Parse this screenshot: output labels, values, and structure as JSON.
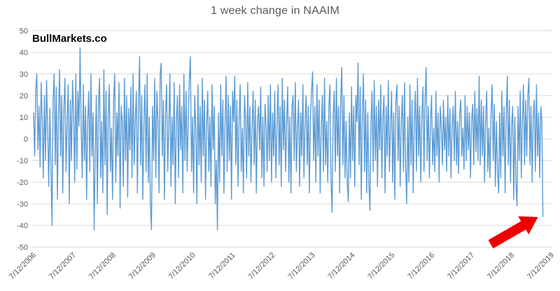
{
  "title": "1 week change in NAAIM",
  "watermark": "BullMarkets.co",
  "colors": {
    "background": "#FFFFFF",
    "series": "#5B9BD5",
    "grid": "#D9D9D9",
    "tick_label": "#595959",
    "title": "#595959",
    "watermark": "#000000",
    "arrow": "#EE0000"
  },
  "chart_data": {
    "type": "line",
    "title": "1 week change in NAAIM",
    "xlabel": "",
    "ylabel": "",
    "ylim": [
      -50,
      50
    ],
    "y_ticks": [
      50,
      40,
      30,
      20,
      10,
      0,
      -10,
      -20,
      -30,
      -40,
      -50
    ],
    "x_tick_labels": [
      "7/12/2006",
      "7/12/2007",
      "7/12/2008",
      "7/12/2009",
      "7/12/2010",
      "7/12/2011",
      "7/12/2012",
      "7/12/2013",
      "7/12/2014",
      "7/12/2015",
      "7/12/2016",
      "7/12/2017",
      "7/12/2018",
      "7/12/2019"
    ],
    "grid": "horizontal",
    "legend": "none",
    "x_total_slots": 479,
    "values": [
      12,
      -8,
      23,
      30,
      -5,
      15,
      -13,
      26,
      8,
      -18,
      20,
      -10,
      27,
      5,
      -22,
      14,
      -12,
      -40,
      18,
      30,
      -12,
      24,
      -28,
      10,
      32,
      -8,
      20,
      -25,
      15,
      28,
      -15,
      8,
      25,
      -30,
      18,
      -10,
      27,
      12,
      -20,
      30,
      -14,
      22,
      6,
      42,
      5,
      -18,
      25,
      -10,
      15,
      -28,
      8,
      22,
      -15,
      30,
      -8,
      12,
      -42,
      -5,
      20,
      -30,
      15,
      28,
      -18,
      8,
      -25,
      32,
      -12,
      22,
      -35,
      10,
      25,
      -15,
      5,
      -28,
      18,
      30,
      -20,
      12,
      -8,
      26,
      -32,
      15,
      8,
      -22,
      28,
      -10,
      20,
      -27,
      14,
      -5,
      24,
      -18,
      30,
      -12,
      8,
      22,
      -25,
      16,
      38,
      -12,
      20,
      -28,
      8,
      25,
      -15,
      30,
      -20,
      10,
      -30,
      -42,
      15,
      -10,
      28,
      -18,
      22,
      8,
      -25,
      30,
      35,
      -8,
      18,
      -28,
      12,
      25,
      -15,
      5,
      30,
      -22,
      10,
      -12,
      26,
      -30,
      8,
      20,
      -18,
      25,
      -5,
      15,
      -25,
      30,
      -10,
      22,
      -15,
      8,
      28,
      38,
      -15,
      10,
      -25,
      20,
      5,
      -30,
      25,
      -12,
      15,
      -20,
      28,
      -8,
      18,
      -28,
      6,
      22,
      -15,
      10,
      -22,
      25,
      -5,
      15,
      -30,
      -10,
      -42,
      12,
      -20,
      25,
      -8,
      18,
      -25,
      5,
      29,
      -15,
      20,
      -10,
      15,
      -28,
      22,
      8,
      29,
      -12,
      18,
      -22,
      8,
      25,
      -15,
      5,
      -25,
      20,
      10,
      -18,
      26,
      -8,
      15,
      -20,
      5,
      22,
      -12,
      18,
      -25,
      8,
      15,
      -5,
      24,
      -18,
      10,
      -22,
      16,
      6,
      -15,
      20,
      -10,
      25,
      -20,
      12,
      -8,
      22,
      -18,
      6,
      25,
      -12,
      15,
      -22,
      28,
      -5,
      18,
      -15,
      8,
      24,
      -20,
      10,
      -25,
      15,
      20,
      -10,
      26,
      -15,
      5,
      18,
      -22,
      12,
      -8,
      25,
      -18,
      8,
      20,
      -12,
      15,
      -25,
      10,
      22,
      31,
      -10,
      15,
      -20,
      25,
      -8,
      18,
      -25,
      5,
      20,
      -15,
      28,
      -12,
      8,
      -20,
      15,
      25,
      -18,
      -34,
      10,
      22,
      -15,
      28,
      -8,
      15,
      -25,
      18,
      33,
      -12,
      20,
      -18,
      8,
      -20,
      -29,
      12,
      -18,
      24,
      -10,
      15,
      -22,
      20,
      8,
      35,
      -12,
      24,
      -28,
      10,
      30,
      -15,
      18,
      -25,
      12,
      -20,
      -33,
      8,
      22,
      -15,
      27,
      -10,
      15,
      -22,
      18,
      -5,
      25,
      -18,
      10,
      20,
      -25,
      15,
      -8,
      27,
      -15,
      5,
      22,
      -20,
      12,
      -28,
      18,
      25,
      -10,
      15,
      -22,
      8,
      20,
      -15,
      26,
      -12,
      -30,
      10,
      -20,
      25,
      -12,
      18,
      -25,
      8,
      22,
      -15,
      28,
      -8,
      15,
      -20,
      10,
      24,
      -15,
      18,
      33,
      -10,
      15,
      -18,
      8,
      20,
      -12,
      5,
      -15,
      22,
      -8,
      12,
      -20,
      15,
      6,
      -12,
      18,
      -5,
      10,
      -15,
      20,
      -8,
      14,
      -18,
      6,
      15,
      -10,
      22,
      -12,
      8,
      -16,
      12,
      18,
      -8,
      5,
      -14,
      20,
      -10,
      15,
      -5,
      12,
      -18,
      8,
      16,
      -12,
      22,
      -6,
      14,
      -10,
      29,
      -12,
      18,
      -8,
      15,
      -20,
      10,
      22,
      -15,
      5,
      -18,
      12,
      25,
      -10,
      16,
      -22,
      8,
      -15,
      -25,
      12,
      -18,
      22,
      -8,
      15,
      -25,
      10,
      29,
      -12,
      18,
      -20,
      6,
      15,
      -28,
      10,
      -20,
      -31,
      15,
      -10,
      22,
      -18,
      8,
      25,
      -12,
      18,
      -8,
      20,
      28,
      -12,
      15,
      -20,
      10,
      18,
      -15,
      25,
      -8,
      12,
      -18,
      15,
      8,
      -36
    ],
    "annotation": {
      "type": "block-arrow",
      "color": "#EE0000",
      "points_to": "final weekly drop of about -36 in July 2019"
    }
  }
}
